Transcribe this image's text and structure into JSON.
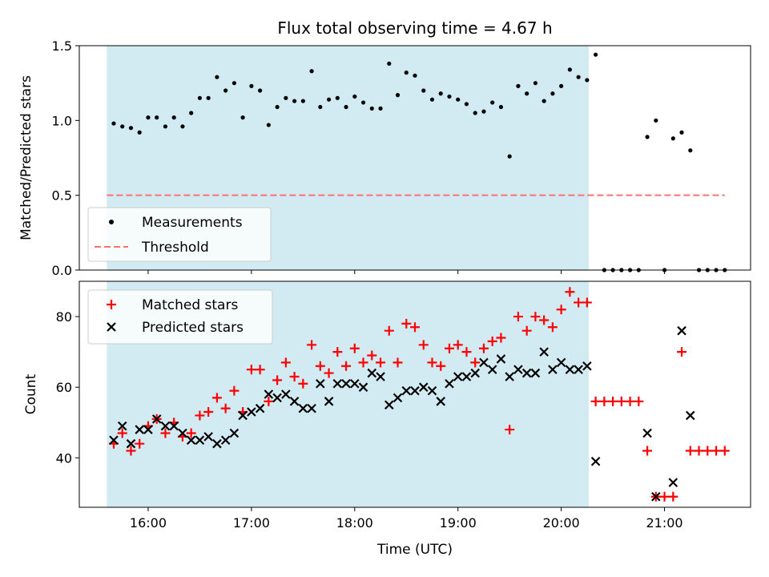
{
  "chart_data": [
    {
      "type": "scatter",
      "title": "Flux total observing time = 4.67 h",
      "xlabel": "",
      "ylabel": "Matched/Predicted stars",
      "ylim": [
        0,
        1.5
      ],
      "yticks": [
        "0.0",
        "0.5",
        "1.0",
        "1.5"
      ],
      "xlim": [
        "15:20",
        "21:50"
      ],
      "legend": "lower-left",
      "shaded_interval": [
        "15:36",
        "20:16"
      ],
      "shade_color": "#add8e6",
      "series": [
        {
          "name": "Measurements",
          "marker": "dot",
          "color": "#000000",
          "points": [
            [
              "15:40",
              0.98
            ],
            [
              "15:45",
              0.96
            ],
            [
              "15:50",
              0.95
            ],
            [
              "15:55",
              0.92
            ],
            [
              "16:00",
              1.02
            ],
            [
              "16:05",
              1.02
            ],
            [
              "16:10",
              0.96
            ],
            [
              "16:15",
              1.02
            ],
            [
              "16:20",
              0.96
            ],
            [
              "16:25",
              1.05
            ],
            [
              "16:30",
              1.15
            ],
            [
              "16:35",
              1.15
            ],
            [
              "16:40",
              1.29
            ],
            [
              "16:45",
              1.2
            ],
            [
              "16:50",
              1.25
            ],
            [
              "16:55",
              1.02
            ],
            [
              "17:00",
              1.23
            ],
            [
              "17:05",
              1.2
            ],
            [
              "17:10",
              0.97
            ],
            [
              "17:15",
              1.09
            ],
            [
              "17:20",
              1.15
            ],
            [
              "17:25",
              1.13
            ],
            [
              "17:30",
              1.13
            ],
            [
              "17:35",
              1.33
            ],
            [
              "17:40",
              1.09
            ],
            [
              "17:45",
              1.14
            ],
            [
              "17:50",
              1.15
            ],
            [
              "17:55",
              1.09
            ],
            [
              "18:00",
              1.16
            ],
            [
              "18:05",
              1.12
            ],
            [
              "18:10",
              1.08
            ],
            [
              "18:15",
              1.08
            ],
            [
              "18:20",
              1.38
            ],
            [
              "18:25",
              1.17
            ],
            [
              "18:30",
              1.32
            ],
            [
              "18:35",
              1.3
            ],
            [
              "18:40",
              1.2
            ],
            [
              "18:45",
              1.14
            ],
            [
              "18:50",
              1.18
            ],
            [
              "18:55",
              1.16
            ],
            [
              "19:00",
              1.14
            ],
            [
              "19:05",
              1.11
            ],
            [
              "19:10",
              1.05
            ],
            [
              "19:15",
              1.06
            ],
            [
              "19:20",
              1.12
            ],
            [
              "19:25",
              1.09
            ],
            [
              "19:30",
              0.76
            ],
            [
              "19:35",
              1.23
            ],
            [
              "19:40",
              1.18
            ],
            [
              "19:45",
              1.25
            ],
            [
              "19:50",
              1.13
            ],
            [
              "19:55",
              1.18
            ],
            [
              "20:00",
              1.23
            ],
            [
              "20:05",
              1.34
            ],
            [
              "20:10",
              1.29
            ],
            [
              "20:15",
              1.27
            ],
            [
              "20:20",
              1.44
            ],
            [
              "20:25",
              0.0
            ],
            [
              "20:30",
              0.0
            ],
            [
              "20:35",
              0.0
            ],
            [
              "20:40",
              0.0
            ],
            [
              "20:45",
              0.0
            ],
            [
              "20:50",
              0.89
            ],
            [
              "20:55",
              1.0
            ],
            [
              "21:00",
              0.0
            ],
            [
              "21:05",
              0.88
            ],
            [
              "21:10",
              0.92
            ],
            [
              "21:15",
              0.8
            ],
            [
              "21:20",
              0.0
            ],
            [
              "21:25",
              0.0
            ],
            [
              "21:30",
              0.0
            ],
            [
              "21:35",
              0.0
            ]
          ]
        },
        {
          "name": "Threshold",
          "marker": "dashed-line",
          "color": "#ff7070",
          "points": [
            [
              "15:36",
              0.5
            ],
            [
              "21:35",
              0.5
            ]
          ]
        }
      ]
    },
    {
      "type": "scatter",
      "title": "",
      "xlabel": "Time (UTC)",
      "ylabel": "Count",
      "ylim": [
        26,
        90
      ],
      "yticks": [
        "40",
        "60",
        "80"
      ],
      "xticks": [
        "16:00",
        "17:00",
        "18:00",
        "19:00",
        "20:00",
        "21:00"
      ],
      "xlim": [
        "15:20",
        "21:50"
      ],
      "legend": "upper-left",
      "shaded_interval": [
        "15:36",
        "20:16"
      ],
      "shade_color": "#add8e6",
      "series": [
        {
          "name": "Matched stars",
          "marker": "plus",
          "color": "#ff0000",
          "points": [
            [
              "15:40",
              44
            ],
            [
              "15:45",
              47
            ],
            [
              "15:50",
              42
            ],
            [
              "15:55",
              44
            ],
            [
              "16:00",
              49
            ],
            [
              "16:05",
              51
            ],
            [
              "16:10",
              47
            ],
            [
              "16:15",
              50
            ],
            [
              "16:20",
              46
            ],
            [
              "16:25",
              47
            ],
            [
              "16:30",
              52
            ],
            [
              "16:35",
              53
            ],
            [
              "16:40",
              57
            ],
            [
              "16:45",
              54
            ],
            [
              "16:50",
              59
            ],
            [
              "16:55",
              53
            ],
            [
              "17:00",
              65
            ],
            [
              "17:05",
              65
            ],
            [
              "17:10",
              56
            ],
            [
              "17:15",
              62
            ],
            [
              "17:20",
              67
            ],
            [
              "17:25",
              63
            ],
            [
              "17:30",
              61
            ],
            [
              "17:35",
              72
            ],
            [
              "17:40",
              66
            ],
            [
              "17:45",
              64
            ],
            [
              "17:50",
              70
            ],
            [
              "17:55",
              66
            ],
            [
              "18:00",
              71
            ],
            [
              "18:05",
              67
            ],
            [
              "18:10",
              69
            ],
            [
              "18:15",
              67
            ],
            [
              "18:20",
              76
            ],
            [
              "18:25",
              67
            ],
            [
              "18:30",
              78
            ],
            [
              "18:35",
              77
            ],
            [
              "18:40",
              72
            ],
            [
              "18:45",
              67
            ],
            [
              "18:50",
              66
            ],
            [
              "18:55",
              71
            ],
            [
              "19:00",
              72
            ],
            [
              "19:05",
              70
            ],
            [
              "19:10",
              67
            ],
            [
              "19:15",
              71
            ],
            [
              "19:20",
              73
            ],
            [
              "19:25",
              74
            ],
            [
              "19:30",
              48
            ],
            [
              "19:35",
              80
            ],
            [
              "19:40",
              76
            ],
            [
              "19:45",
              80
            ],
            [
              "19:50",
              79
            ],
            [
              "19:55",
              77
            ],
            [
              "20:00",
              82
            ],
            [
              "20:05",
              87
            ],
            [
              "20:10",
              84
            ],
            [
              "20:15",
              84
            ],
            [
              "20:20",
              56
            ],
            [
              "20:25",
              56
            ],
            [
              "20:30",
              56
            ],
            [
              "20:35",
              56
            ],
            [
              "20:40",
              56
            ],
            [
              "20:45",
              56
            ],
            [
              "20:50",
              42
            ],
            [
              "20:55",
              29
            ],
            [
              "21:00",
              29
            ],
            [
              "21:05",
              29
            ],
            [
              "21:10",
              70
            ],
            [
              "21:15",
              42
            ],
            [
              "21:20",
              42
            ],
            [
              "21:25",
              42
            ],
            [
              "21:30",
              42
            ],
            [
              "21:35",
              42
            ]
          ]
        },
        {
          "name": "Predicted stars",
          "marker": "x",
          "color": "#000000",
          "points": [
            [
              "15:40",
              45
            ],
            [
              "15:45",
              49
            ],
            [
              "15:50",
              44
            ],
            [
              "15:55",
              48
            ],
            [
              "16:00",
              48
            ],
            [
              "16:05",
              51
            ],
            [
              "16:10",
              49
            ],
            [
              "16:15",
              49
            ],
            [
              "16:20",
              47
            ],
            [
              "16:25",
              45
            ],
            [
              "16:30",
              45
            ],
            [
              "16:35",
              46
            ],
            [
              "16:40",
              44
            ],
            [
              "16:45",
              45
            ],
            [
              "16:50",
              47
            ],
            [
              "16:55",
              52
            ],
            [
              "17:00",
              53
            ],
            [
              "17:05",
              54
            ],
            [
              "17:10",
              58
            ],
            [
              "17:15",
              57
            ],
            [
              "17:20",
              58
            ],
            [
              "17:25",
              56
            ],
            [
              "17:30",
              54
            ],
            [
              "17:35",
              54
            ],
            [
              "17:40",
              61
            ],
            [
              "17:45",
              56
            ],
            [
              "17:50",
              61
            ],
            [
              "17:55",
              61
            ],
            [
              "18:00",
              61
            ],
            [
              "18:05",
              60
            ],
            [
              "18:10",
              64
            ],
            [
              "18:15",
              63
            ],
            [
              "18:20",
              55
            ],
            [
              "18:25",
              57
            ],
            [
              "18:30",
              59
            ],
            [
              "18:35",
              59
            ],
            [
              "18:40",
              60
            ],
            [
              "18:45",
              59
            ],
            [
              "18:50",
              56
            ],
            [
              "18:55",
              61
            ],
            [
              "19:00",
              63
            ],
            [
              "19:05",
              63
            ],
            [
              "19:10",
              64
            ],
            [
              "19:15",
              67
            ],
            [
              "19:20",
              65
            ],
            [
              "19:25",
              68
            ],
            [
              "19:30",
              63
            ],
            [
              "19:35",
              65
            ],
            [
              "19:40",
              64
            ],
            [
              "19:45",
              64
            ],
            [
              "19:50",
              70
            ],
            [
              "19:55",
              65
            ],
            [
              "20:00",
              67
            ],
            [
              "20:05",
              65
            ],
            [
              "20:10",
              65
            ],
            [
              "20:15",
              66
            ],
            [
              "20:20",
              39
            ],
            [
              "20:50",
              47
            ],
            [
              "20:55",
              29
            ],
            [
              "21:05",
              33
            ],
            [
              "21:10",
              76
            ],
            [
              "21:15",
              52
            ]
          ]
        }
      ]
    }
  ]
}
